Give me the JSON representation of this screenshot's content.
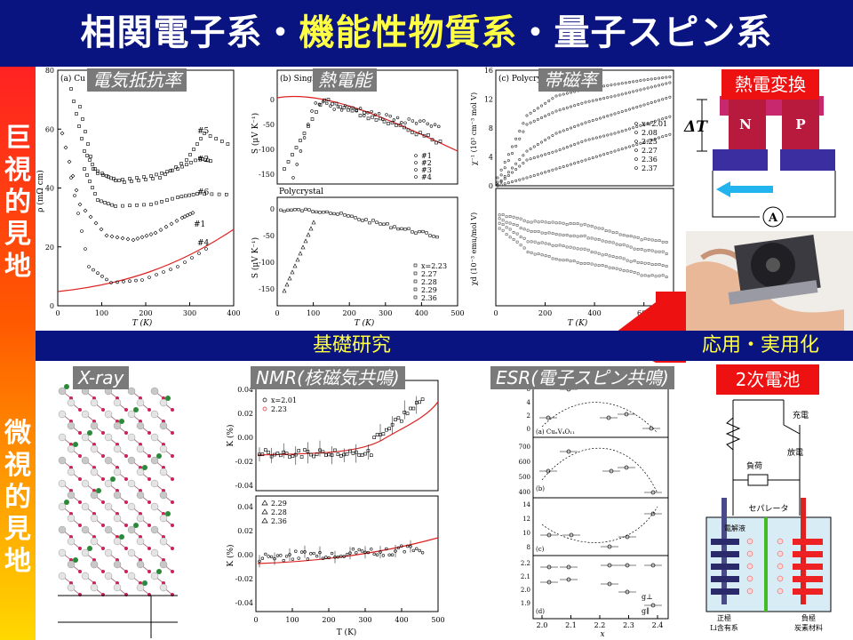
{
  "title": {
    "part1": "相関電子系・",
    "part2": "機能性物質系",
    "part3": "・量子スピン系"
  },
  "side": {
    "macro": "巨視的見地",
    "micro": "微視的見地"
  },
  "midbar": {
    "basic": "基礎研究",
    "applied": "応用・実用化"
  },
  "panels": {
    "resistivity": "電気抵抗率",
    "thermopower": "熱電能",
    "susceptibility": "帯磁率",
    "xray": "X-ray",
    "nmr": "NMR(核磁気共鳴)",
    "esr": "ESR(電子スピン共鳴)",
    "thermoelectric": "熱電変換",
    "battery": "2次電池"
  },
  "charts": {
    "a": {
      "panel": "(a) Cu",
      "xlabel": "T (K)",
      "ylabel": "ρ (mΩ cm)",
      "xticks": [
        "0",
        "100",
        "200",
        "300",
        "400"
      ],
      "yticks": [
        "0",
        "20",
        "40",
        "60",
        "80"
      ],
      "samples": [
        "#5",
        "#2",
        "#6",
        "#1",
        "#4"
      ]
    },
    "b": {
      "panel": "(b) Single c",
      "subpanel": "Polycrystal",
      "xlabel": "T (K)",
      "ylabel": "S (μV K⁻¹)",
      "xticks": [
        "0",
        "100",
        "200",
        "300",
        "400",
        "500"
      ],
      "yticks_top": [
        "0",
        "-50",
        "-100",
        "-150"
      ],
      "yticks_bottom": [
        "0",
        "-50",
        "-100",
        "-150"
      ],
      "legend_top": [
        "#1",
        "#2",
        "#3",
        "#4"
      ],
      "legend_bottom": [
        "x=2.23",
        "2.27",
        "2.28",
        "2.29",
        "2.36"
      ]
    },
    "c": {
      "panel": "(c) Polycrys",
      "xlabel": "T (K)",
      "ylabel_top": "χ⁻¹ (10³ cm⁻³ mol V)",
      "ylabel_bottom": "χd (10⁻³ emu/mol V)",
      "xticks": [
        "0",
        "200",
        "400",
        "600"
      ],
      "yticks_top": [
        "0",
        "4",
        "8",
        "12",
        "16"
      ],
      "legend": [
        "x=2.01",
        "2.08",
        "2.25",
        "2.27",
        "2.36",
        "2.37"
      ]
    },
    "nmr": {
      "ylabel": "K (%)",
      "xlabel": "T (K)",
      "xticks": [
        "0",
        "100",
        "200",
        "300",
        "400",
        "500"
      ],
      "yticks": [
        "0.04",
        "0.02",
        "0.00",
        "-0.02",
        "-0.04"
      ],
      "legend_top": [
        "x=2.01",
        "2.23"
      ],
      "legend_bottom": [
        "2.29",
        "2.28",
        "2.36"
      ]
    },
    "esr": {
      "xlabel": "x",
      "xticks": [
        "2.0",
        "2.1",
        "2.2",
        "2.3",
        "2.4"
      ],
      "panels": [
        "(a) CuₓV₄O₁₁",
        "(b)",
        "(c)",
        "(d)"
      ],
      "y1": [
        "6",
        "4",
        "2",
        "0"
      ],
      "y2": [
        "700",
        "600",
        "500",
        "400"
      ],
      "y3": [
        "14",
        "12",
        "10",
        "8"
      ],
      "y4": [
        "2.2",
        "2.1",
        "2.0",
        "1.9"
      ],
      "d_label1": "g⊥",
      "d_label2": "g∥"
    }
  },
  "thermo": {
    "dt": "ΔT",
    "n": "N",
    "p": "P",
    "meter": "A"
  },
  "battery_diag": {
    "charge": "充電",
    "discharge": "放電",
    "load": "負荷",
    "separator": "セパレータ",
    "electrolyte": "電解液",
    "anode1": "正極",
    "anode2": "Li含有系",
    "cathode1": "負極",
    "cathode2": "炭素材料"
  },
  "colors": {
    "navy": "#0a1480",
    "yellow": "#ffff44",
    "red": "#ee1111"
  }
}
